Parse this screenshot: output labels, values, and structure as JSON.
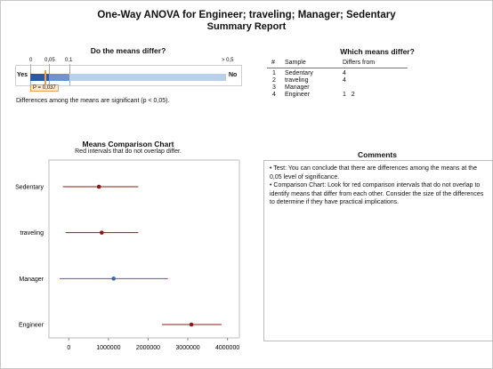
{
  "title_line1": "One-Way ANOVA for Engineer; traveling; Manager; Sedentary",
  "title_line2": "Summary Report",
  "pvalue_panel": {
    "heading": "Do the means differ?",
    "scale_ticks": [
      "0",
      "0,05",
      "0,1",
      "> 0,5"
    ],
    "yes_label": "Yes",
    "no_label": "No",
    "p_label": "P = 0,037",
    "p_value": 0.037,
    "conclusion": "Differences among the means are significant (p < 0,05)."
  },
  "which_panel": {
    "heading": "Which means differ?",
    "col_num": "#",
    "col_sample": "Sample",
    "col_differs": "Differs from",
    "rows": [
      {
        "num": "1",
        "sample": "Sedentary",
        "differs": "4"
      },
      {
        "num": "2",
        "sample": "traveling",
        "differs": "4"
      },
      {
        "num": "3",
        "sample": "Manager",
        "differs": ""
      },
      {
        "num": "4",
        "sample": "Engineer",
        "differs": "1   2"
      }
    ]
  },
  "chart_header": {
    "title": "Means Comparison Chart",
    "subtitle": "Red intervals that do not overlap differ."
  },
  "chart_data": {
    "type": "scatter",
    "title": "Means Comparison Chart",
    "subtitle": "Red intervals that do not overlap differ.",
    "categories": [
      "Sedentary",
      "traveling",
      "Manager",
      "Engineer"
    ],
    "xlim": [
      -500000,
      4300000
    ],
    "xticks": [
      0,
      1000000,
      2000000,
      3000000,
      4000000
    ],
    "xtick_labels": [
      "0",
      "1000000",
      "2000000",
      "3000000",
      "4000000"
    ],
    "series": [
      {
        "category": "Sedentary",
        "mean": 760000,
        "low": -150000,
        "high": 1750000,
        "color": "#8b1a1a"
      },
      {
        "category": "traveling",
        "mean": 830000,
        "low": -80000,
        "high": 1750000,
        "color": "#8b1a1a"
      },
      {
        "category": "Manager",
        "mean": 1130000,
        "low": -230000,
        "high": 2500000,
        "color": "#2f6db5"
      },
      {
        "category": "Engineer",
        "mean": 3090000,
        "low": 2350000,
        "high": 3850000,
        "color": "#8b1a1a"
      }
    ],
    "grid": false
  },
  "comments": {
    "heading": "Comments",
    "items": [
      "• Test: You can conclude that there are differences among the means at the 0,05 level of significance.",
      "• Comparison Chart: Look for red comparison intervals that do not overlap to identify means that differ from each other. Consider the size of the differences to determine if they have practical implications."
    ]
  },
  "colors": {
    "red_interval": "#8b1a1a",
    "blue_interval": "#2f6db5",
    "bar_dark": "#2a5aa0",
    "bar_light": "#b9d0ec",
    "p_marker": "#e8a24a"
  }
}
